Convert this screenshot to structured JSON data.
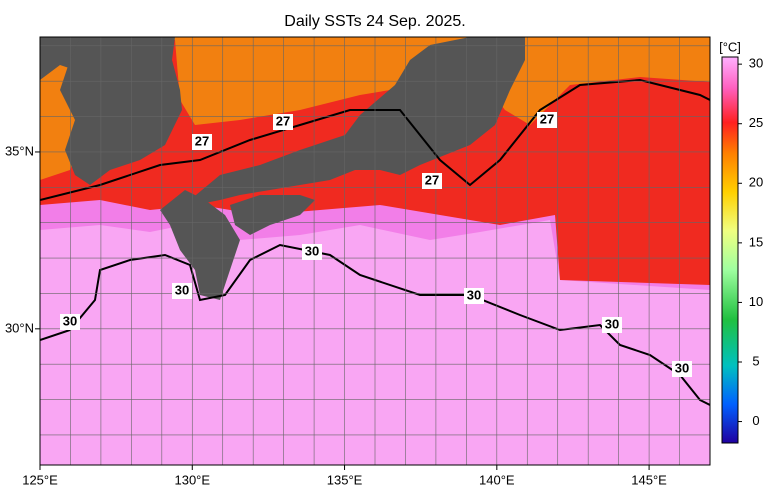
{
  "title": "Daily SSTs 24 Sep. 2025.",
  "map": {
    "lonlim": [
      125,
      147
    ],
    "latlim": [
      26.15,
      38.25
    ],
    "lonticks": [
      {
        "value": 125,
        "label": "125°E"
      },
      {
        "value": 130,
        "label": "130°E"
      },
      {
        "value": 135,
        "label": "135°E"
      },
      {
        "value": 140,
        "label": "140°E"
      },
      {
        "value": 145,
        "label": "145°E"
      }
    ],
    "latticks": [
      {
        "value": 30,
        "label": "30°N"
      },
      {
        "value": 35,
        "label": "35°N"
      }
    ]
  },
  "contour_labels": [
    "27",
    "27",
    "27",
    "27",
    "30",
    "30",
    "30",
    "30",
    "30",
    "30"
  ],
  "colorbar": {
    "label": "[°C]",
    "range": [
      -1.8,
      30.6
    ],
    "ticks": [
      0,
      5,
      10,
      15,
      20,
      25,
      30
    ]
  }
}
